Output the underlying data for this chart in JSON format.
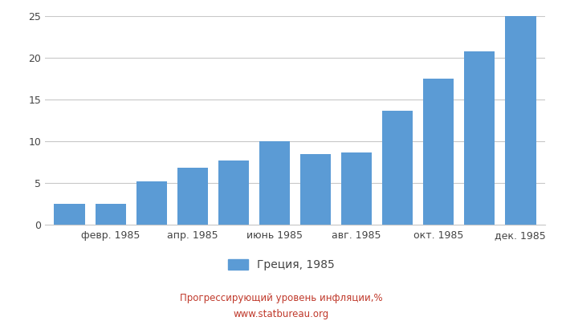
{
  "values": [
    2.5,
    2.5,
    5.2,
    6.8,
    7.7,
    10.0,
    8.5,
    8.7,
    13.7,
    17.5,
    20.8,
    25.0
  ],
  "xtick_labels": [
    "февр. 1985",
    "апр. 1985",
    "июнь 1985",
    "авг. 1985",
    "окт. 1985",
    "дек. 1985"
  ],
  "xtick_positions": [
    1,
    3,
    5,
    7,
    9,
    11
  ],
  "bar_color": "#5b9bd5",
  "ylim": [
    0,
    25
  ],
  "yticks": [
    0,
    5,
    10,
    15,
    20,
    25
  ],
  "legend_label": "Греция, 1985",
  "footer_line1": "Прогрессирующий уровень инфляции,%",
  "footer_line2": "www.statbureau.org",
  "footer_color": "#c0392b",
  "background_color": "#ffffff",
  "grid_color": "#c8c8c8",
  "bar_width": 0.75
}
